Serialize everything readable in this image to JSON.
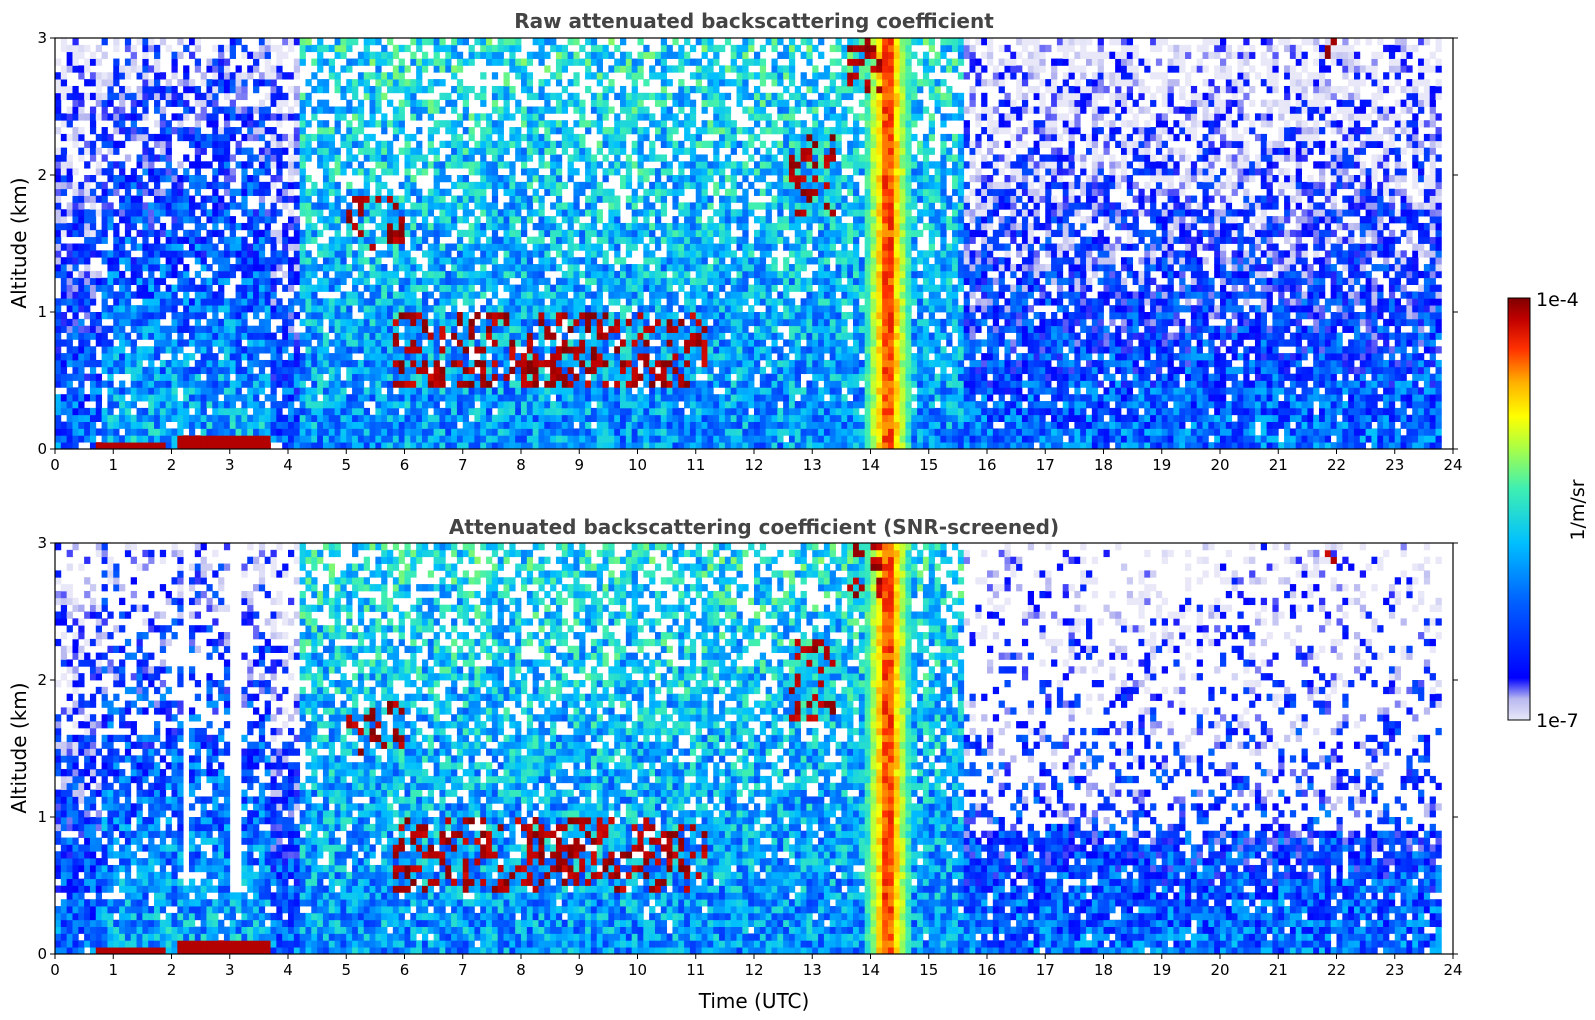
{
  "chart_data": [
    {
      "type": "heatmap",
      "title": "Raw attenuated backscattering coefficient",
      "ylabel": "Altitude (km)",
      "xlabel": "",
      "xlim": [
        0,
        24
      ],
      "ylim": [
        0,
        3
      ],
      "xticks": [
        "0",
        "1",
        "2",
        "3",
        "4",
        "5",
        "6",
        "7",
        "8",
        "9",
        "10",
        "11",
        "12",
        "13",
        "14",
        "15",
        "16",
        "17",
        "18",
        "19",
        "20",
        "21",
        "22",
        "23",
        "24"
      ],
      "yticks": [
        "0",
        "1",
        "2",
        "3"
      ],
      "screened": false,
      "features": [
        {
          "kind": "surface_layer",
          "x": [
            0.7,
            1.9
          ],
          "y": [
            0.0,
            0.05
          ]
        },
        {
          "kind": "surface_layer",
          "x": [
            2.1,
            3.7
          ],
          "y": [
            0.0,
            0.08
          ]
        },
        {
          "kind": "aerosol_layer",
          "x": [
            5.0,
            6.0
          ],
          "y": [
            1.45,
            1.85
          ]
        },
        {
          "kind": "aerosol_layer",
          "x": [
            5.8,
            11.2
          ],
          "y": [
            0.45,
            1.0
          ]
        },
        {
          "kind": "cloud_column",
          "x": [
            13.9,
            14.7
          ],
          "y": [
            0.0,
            3.0
          ]
        },
        {
          "kind": "cloud_patch",
          "x": [
            12.6,
            13.4
          ],
          "y": [
            1.7,
            2.3
          ]
        },
        {
          "kind": "cloud_patch",
          "x": [
            13.6,
            14.2
          ],
          "y": [
            2.6,
            3.0
          ]
        },
        {
          "kind": "cloud_patch",
          "x": [
            21.8,
            22.0
          ],
          "y": [
            2.85,
            3.0
          ]
        }
      ]
    },
    {
      "type": "heatmap",
      "title": "Attenuated backscattering coefficient (SNR-screened)",
      "ylabel": "Altitude (km)",
      "xlabel": "Time (UTC)",
      "xlim": [
        0,
        24
      ],
      "ylim": [
        0,
        3
      ],
      "xticks": [
        "0",
        "1",
        "2",
        "3",
        "4",
        "5",
        "6",
        "7",
        "8",
        "9",
        "10",
        "11",
        "12",
        "13",
        "14",
        "15",
        "16",
        "17",
        "18",
        "19",
        "20",
        "21",
        "22",
        "23",
        "24"
      ],
      "yticks": [
        "0",
        "1",
        "2",
        "3"
      ],
      "screened": true,
      "features": [
        {
          "kind": "surface_layer",
          "x": [
            0.7,
            1.9
          ],
          "y": [
            0.0,
            0.05
          ]
        },
        {
          "kind": "surface_layer",
          "x": [
            2.1,
            3.7
          ],
          "y": [
            0.0,
            0.08
          ]
        },
        {
          "kind": "aerosol_layer",
          "x": [
            5.0,
            6.0
          ],
          "y": [
            1.45,
            1.85
          ]
        },
        {
          "kind": "aerosol_layer",
          "x": [
            5.8,
            11.2
          ],
          "y": [
            0.45,
            1.0
          ]
        },
        {
          "kind": "cloud_column",
          "x": [
            13.9,
            14.7
          ],
          "y": [
            0.0,
            3.0
          ]
        },
        {
          "kind": "cloud_patch",
          "x": [
            12.6,
            13.4
          ],
          "y": [
            1.7,
            2.3
          ]
        },
        {
          "kind": "cloud_patch",
          "x": [
            13.6,
            14.2
          ],
          "y": [
            2.6,
            3.0
          ]
        },
        {
          "kind": "cloud_patch",
          "x": [
            21.8,
            22.0
          ],
          "y": [
            2.85,
            3.0
          ]
        }
      ]
    }
  ],
  "colorbar": {
    "label": "1/m/sr",
    "max_label": "1e-4",
    "min_label": "1e-7",
    "colormap": "jet",
    "colors": [
      "#e8e8f8",
      "#b8b8f0",
      "#0000ff",
      "#0050ff",
      "#00a0ff",
      "#00d8f0",
      "#30f0c0",
      "#80ff80",
      "#c8ff30",
      "#ffff00",
      "#ffc000",
      "#ff7000",
      "#ff2000",
      "#c00000",
      "#800000"
    ]
  }
}
